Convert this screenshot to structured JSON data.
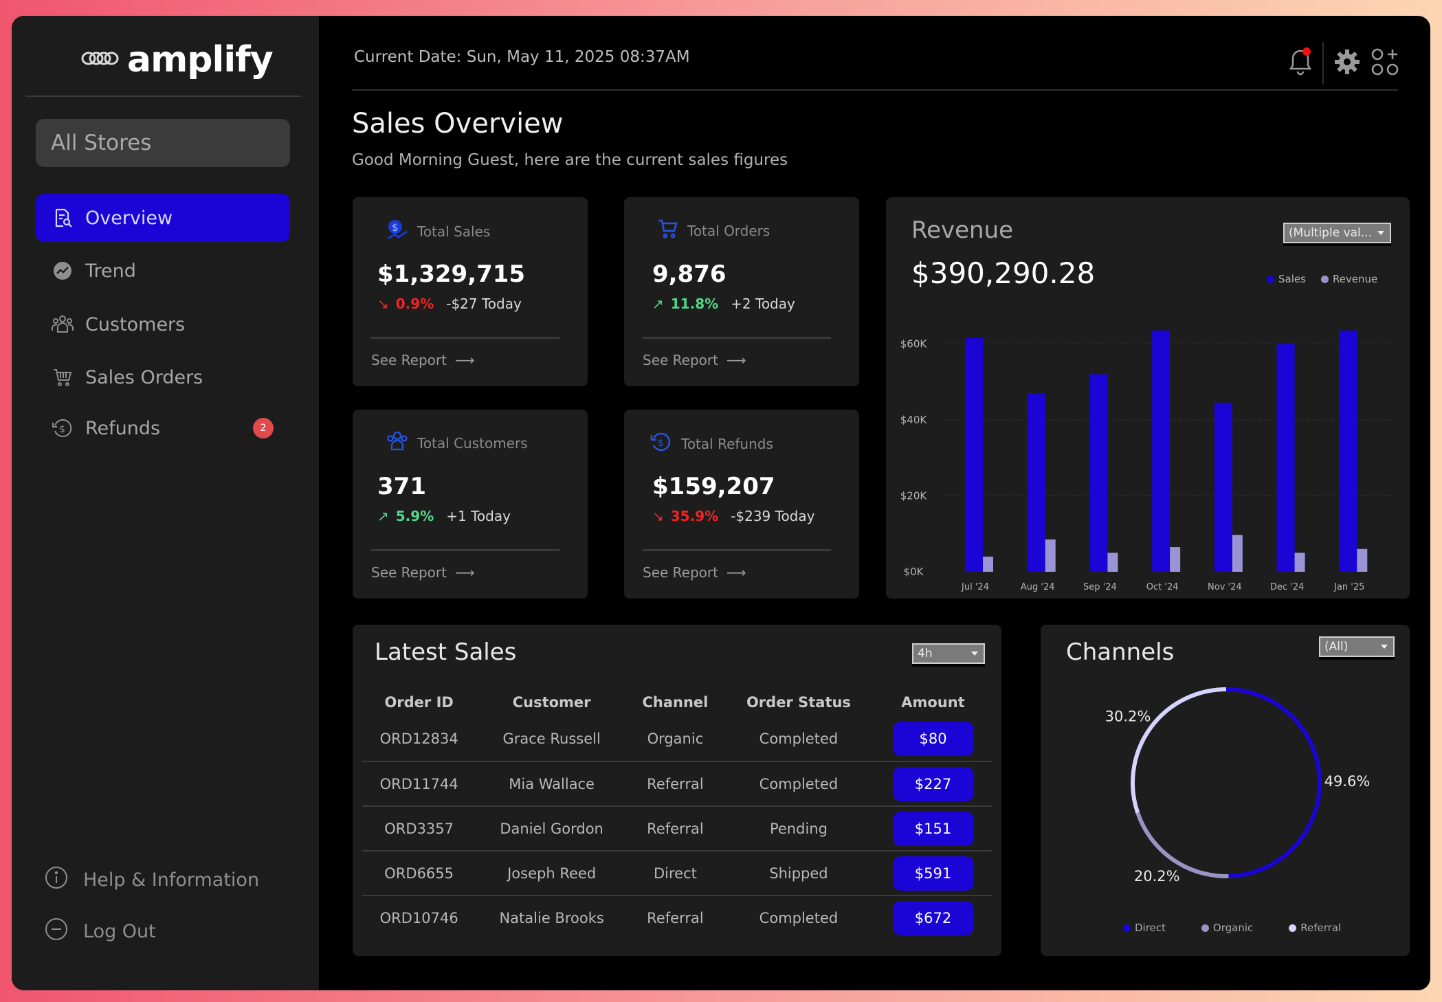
{
  "brand": {
    "name": "amplify"
  },
  "store_selector": {
    "value": "All Stores"
  },
  "nav": [
    {
      "id": "overview",
      "label": "Overview",
      "active": true
    },
    {
      "id": "trend",
      "label": "Trend"
    },
    {
      "id": "customers",
      "label": "Customers"
    },
    {
      "id": "sales-orders",
      "label": "Sales Orders"
    },
    {
      "id": "refunds",
      "label": "Refunds",
      "badge": "2"
    }
  ],
  "footer_nav": [
    {
      "id": "help",
      "label": "Help & Information"
    },
    {
      "id": "logout",
      "label": "Log Out"
    }
  ],
  "header": {
    "date_text": "Current Date: Sun, May 11, 2025 08:37AM"
  },
  "page": {
    "title": "Sales Overview",
    "subtitle": "Good Morning Guest, here are the current sales figures"
  },
  "kpis": [
    {
      "label": "Total Sales",
      "value": "$1,329,715",
      "direction": "down",
      "pct": "0.9%",
      "today": "-$27 Today",
      "link": "See Report"
    },
    {
      "label": "Total Orders",
      "value": "9,876",
      "direction": "up",
      "pct": "11.8%",
      "today": "+2 Today",
      "link": "See Report"
    },
    {
      "label": "Total Customers",
      "value": "371",
      "direction": "up",
      "pct": "5.9%",
      "today": "+1 Today",
      "link": "See Report"
    },
    {
      "label": "Total Refunds",
      "value": "$159,207",
      "direction": "down",
      "pct": "35.9%",
      "today": "-$239 Today",
      "link": "See Report"
    }
  ],
  "revenue": {
    "title": "Revenue",
    "total": "$390,290.28",
    "filter": "(Multiple val...",
    "legend": [
      "Sales",
      "Revenue"
    ]
  },
  "latest_sales": {
    "title": "Latest Sales",
    "filter": "4h",
    "columns": [
      "Order ID",
      "Customer",
      "Channel",
      "Order Status",
      "Amount"
    ],
    "rows": [
      {
        "id": "ORD12834",
        "customer": "Grace Russell",
        "channel": "Organic",
        "status": "Completed",
        "amount": "$80"
      },
      {
        "id": "ORD11744",
        "customer": "Mia Wallace",
        "channel": "Referral",
        "status": "Completed",
        "amount": "$227"
      },
      {
        "id": "ORD3357",
        "customer": "Daniel Gordon",
        "channel": "Referral",
        "status": "Pending",
        "amount": "$151"
      },
      {
        "id": "ORD6655",
        "customer": "Joseph Reed",
        "channel": "Direct",
        "status": "Shipped",
        "amount": "$591"
      },
      {
        "id": "ORD10746",
        "customer": "Natalie Brooks",
        "channel": "Referral",
        "status": "Completed",
        "amount": "$672"
      }
    ]
  },
  "channels": {
    "title": "Channels",
    "filter": "(All)",
    "legend": [
      "Direct",
      "Organic",
      "Referral"
    ]
  },
  "colors": {
    "accent": "#1a05d6",
    "revenue_bar": "#9a94d4",
    "direct": "#1a05d6",
    "organic": "#9a94c4",
    "referral": "#d6d4ff",
    "down": "#f02424",
    "up": "#52d685"
  },
  "chart_data": [
    {
      "type": "bar",
      "categories": [
        "Jul '24",
        "Aug '24",
        "Sep '24",
        "Oct '24",
        "Nov '24",
        "Dec '24",
        "Jan '25"
      ],
      "series": [
        {
          "name": "Sales",
          "values": [
            61500,
            47000,
            52000,
            63500,
            44500,
            60000,
            63500
          ]
        },
        {
          "name": "Revenue",
          "values": [
            4000,
            8500,
            5000,
            6500,
            9700,
            5000,
            6000
          ]
        }
      ],
      "yticks": [
        "$0K",
        "$20K",
        "$40K",
        "$60K"
      ],
      "ylim": [
        0,
        60000
      ],
      "grid": true,
      "legend_position": "top-right"
    },
    {
      "type": "pie",
      "style": "donut-ring",
      "labels": [
        "Direct",
        "Organic",
        "Referral"
      ],
      "values": [
        49.6,
        20.2,
        30.2
      ],
      "value_labels": [
        "49.6%",
        "20.2%",
        "30.2%"
      ],
      "legend_position": "bottom"
    }
  ]
}
